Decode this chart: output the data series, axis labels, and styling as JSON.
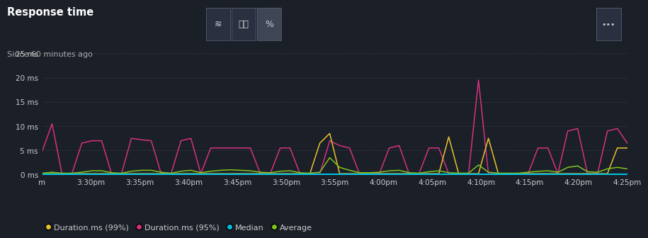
{
  "title": "Response time",
  "subtitle": "Since 60 minutes ago",
  "bg_color": "#1a1f28",
  "plot_bg_color": "#1a1f28",
  "grid_color": "#404550",
  "text_color": "#ffffff",
  "subtitle_color": "#aaaaaa",
  "axis_label_color": "#cccccc",
  "ylim": [
    0,
    27
  ],
  "yticks": [
    0,
    5,
    10,
    15,
    20,
    25
  ],
  "ytick_labels": [
    "0 ms",
    "5 ms",
    "10 ms",
    "15 ms",
    "20 ms",
    "25 ms"
  ],
  "xtick_labels": [
    "m",
    "3:30pm",
    "3:35pm",
    "3:40pm",
    "3:45pm",
    "3:50pm",
    "3:55pm",
    "4:00pm",
    "4:05pm",
    "4:10pm",
    "4:15pm",
    "4:20pm",
    "4:25pm"
  ],
  "legend": [
    {
      "label": "Duration.ms (99%)",
      "color": "#e8c22e",
      "marker": "o"
    },
    {
      "label": "Duration.ms (95%)",
      "color": "#d6327e",
      "marker": "o"
    },
    {
      "label": "Median",
      "color": "#00c0e0",
      "marker": "o"
    },
    {
      "label": "Average",
      "color": "#7fc41e",
      "marker": "o"
    }
  ],
  "p99": [
    0.2,
    0.2,
    0.2,
    0.2,
    0.2,
    0.2,
    0.2,
    0.2,
    0.2,
    0.2,
    0.2,
    0.2,
    0.2,
    0.2,
    0.2,
    0.2,
    0.2,
    0.2,
    0.2,
    0.2,
    0.2,
    0.2,
    0.2,
    0.2,
    0.2,
    0.2,
    0.2,
    0.2,
    6.5,
    8.5,
    0.2,
    0.2,
    0.2,
    0.2,
    0.2,
    0.2,
    0.2,
    0.2,
    0.2,
    0.2,
    0.2,
    7.8,
    0.2,
    0.2,
    0.2,
    7.5,
    0.2,
    0.2,
    0.2,
    0.2,
    0.2,
    0.2,
    0.2,
    0.2,
    0.2,
    0.2,
    0.2,
    0.2,
    5.5,
    5.5
  ],
  "p95": [
    4.8,
    10.5,
    0.2,
    0.2,
    6.5,
    7.0,
    7.0,
    0.2,
    0.2,
    7.5,
    7.2,
    7.0,
    0.2,
    0.2,
    7.0,
    7.5,
    0.2,
    5.5,
    5.5,
    5.5,
    5.5,
    5.5,
    0.2,
    0.2,
    5.5,
    5.5,
    0.2,
    0.2,
    0.2,
    7.0,
    6.0,
    5.5,
    0.2,
    0.2,
    0.2,
    5.5,
    6.0,
    0.2,
    0.2,
    5.5,
    5.5,
    0.2,
    0.2,
    0.2,
    19.5,
    0.2,
    0.2,
    0.2,
    0.2,
    0.2,
    5.5,
    5.5,
    0.2,
    9.0,
    9.5,
    0.2,
    0.2,
    9.0,
    9.5,
    6.5
  ],
  "median": [
    0.05,
    0.05,
    0.05,
    0.05,
    0.05,
    0.05,
    0.05,
    0.05,
    0.05,
    0.05,
    0.05,
    0.05,
    0.05,
    0.05,
    0.05,
    0.05,
    0.05,
    0.05,
    0.05,
    0.05,
    0.05,
    0.05,
    0.05,
    0.05,
    0.05,
    0.05,
    0.05,
    0.05,
    0.05,
    0.05,
    0.05,
    0.05,
    0.05,
    0.05,
    0.05,
    0.05,
    0.05,
    0.05,
    0.05,
    0.05,
    0.05,
    0.05,
    0.05,
    0.05,
    0.05,
    0.05,
    0.05,
    0.05,
    0.05,
    0.05,
    0.05,
    0.05,
    0.05,
    0.05,
    0.05,
    0.05,
    0.05,
    0.05,
    0.05,
    0.05
  ],
  "average": [
    0.3,
    0.5,
    0.3,
    0.3,
    0.5,
    0.8,
    0.8,
    0.4,
    0.3,
    0.7,
    0.9,
    0.9,
    0.5,
    0.3,
    0.7,
    0.9,
    0.4,
    0.7,
    0.9,
    1.0,
    0.9,
    0.8,
    0.5,
    0.4,
    0.7,
    0.8,
    0.4,
    0.3,
    0.5,
    3.5,
    1.5,
    0.9,
    0.4,
    0.4,
    0.5,
    0.8,
    0.9,
    0.4,
    0.3,
    0.6,
    0.8,
    0.4,
    0.3,
    0.3,
    2.0,
    0.5,
    0.3,
    0.3,
    0.3,
    0.5,
    0.7,
    0.8,
    0.5,
    1.5,
    1.8,
    0.6,
    0.5,
    1.2,
    1.5,
    1.2
  ]
}
